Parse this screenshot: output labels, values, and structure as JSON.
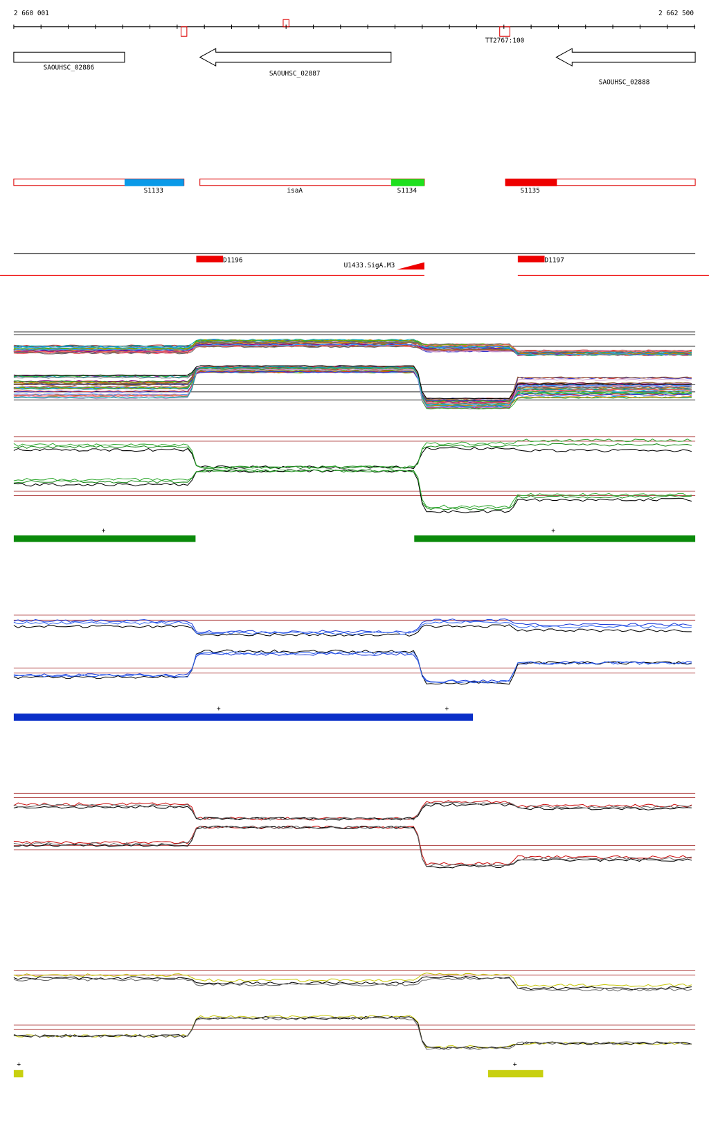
{
  "ruler": {
    "start": "2 660 001",
    "end": "2 662 500",
    "marker": "TT2767:100"
  },
  "genes": [
    "SAOUHSC_02886",
    "SAOUHSC_02887",
    "SAOUHSC_02888"
  ],
  "segments": {
    "left": "S1133",
    "middle_name": "isaA",
    "middle": "S1134",
    "right": "S1135"
  },
  "features": {
    "d1": "D1196",
    "d2": "D1197",
    "promoter": "U1433.SigA.M3"
  },
  "tracks": [
    {
      "markers": [
        "+",
        "+"
      ]
    },
    {
      "markers": [
        "+",
        "+"
      ]
    },
    {
      "markers": [
        "+",
        "+"
      ]
    }
  ]
}
